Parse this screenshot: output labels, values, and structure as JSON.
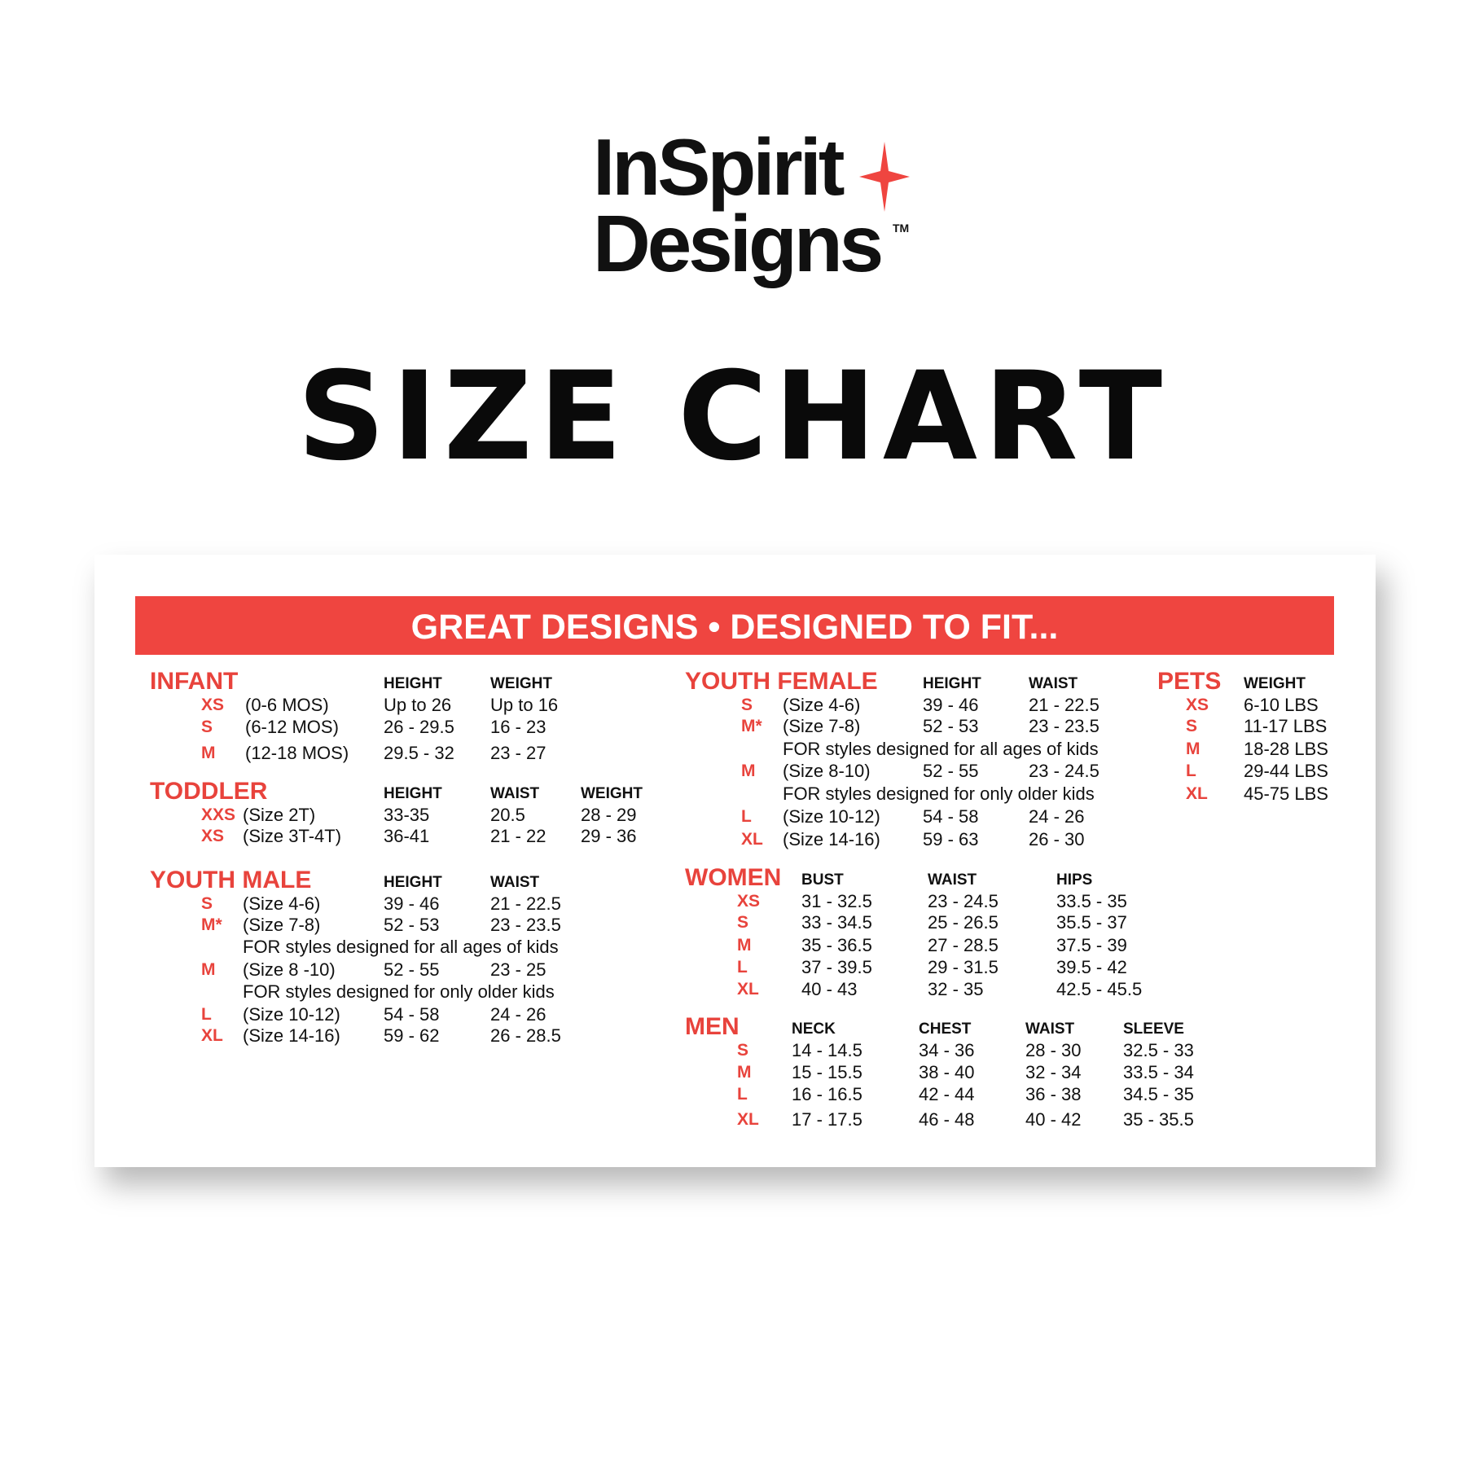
{
  "logo": {
    "line1": "InSpirit",
    "line2": "Designs",
    "tm": "TM",
    "star_color": "#ef4540"
  },
  "title": "SIZE CHART",
  "banner": "GREAT DESIGNS • DESIGNED TO FIT...",
  "colors": {
    "accent": "#ef4540",
    "text": "#111111"
  },
  "sections": [
    {
      "id": "infant",
      "title": "INFANT",
      "headers": [
        "HEIGHT",
        "WEIGHT"
      ],
      "rows": [
        {
          "size": "XS",
          "desc": "(0-6 MOS)",
          "cols": [
            "Up to 26",
            "Up to 16"
          ]
        },
        {
          "size": "S",
          "desc": "(6-12 MOS)",
          "cols": [
            "26 - 29.5",
            "16 - 23"
          ]
        },
        {
          "size": "M",
          "desc": "(12-18 MOS)",
          "cols": [
            "29.5 - 32",
            "23 - 27"
          ]
        }
      ]
    },
    {
      "id": "toddler",
      "title": "TODDLER",
      "headers": [
        "HEIGHT",
        "WAIST",
        "WEIGHT"
      ],
      "rows": [
        {
          "size": "XXS",
          "desc": "(Size 2T)",
          "cols": [
            "33-35",
            "20.5",
            "28 - 29"
          ]
        },
        {
          "size": "XS",
          "desc": "(Size 3T-4T)",
          "cols": [
            "36-41",
            "21 - 22",
            "29 - 36"
          ]
        }
      ]
    },
    {
      "id": "youth-male",
      "title": "YOUTH MALE",
      "headers": [
        "HEIGHT",
        "WAIST"
      ],
      "rows": [
        {
          "size": "S",
          "desc": "(Size 4-6)",
          "cols": [
            "39 - 46",
            "21 - 22.5"
          ]
        },
        {
          "size": "M*",
          "desc": "(Size 7-8)",
          "cols": [
            "52 - 53",
            "23 - 23.5"
          ]
        },
        {
          "note": "FOR styles designed for all ages of kids"
        },
        {
          "size": "M",
          "desc": "(Size 8 -10)",
          "cols": [
            "52 - 55",
            "23 - 25"
          ]
        },
        {
          "note": "FOR styles designed for only older kids"
        },
        {
          "size": "L",
          "desc": "(Size 10-12)",
          "cols": [
            "54 - 58",
            "24 - 26"
          ]
        },
        {
          "size": "XL",
          "desc": "(Size 14-16)",
          "cols": [
            "59 - 62",
            "26 - 28.5"
          ]
        }
      ]
    },
    {
      "id": "youth-female",
      "title": "YOUTH FEMALE",
      "headers": [
        "HEIGHT",
        "WAIST"
      ],
      "rows": [
        {
          "size": "S",
          "desc": "(Size 4-6)",
          "cols": [
            "39 - 46",
            "21 - 22.5"
          ]
        },
        {
          "size": "M*",
          "desc": "(Size 7-8)",
          "cols": [
            "52 - 53",
            "23 - 23.5"
          ]
        },
        {
          "note": "FOR styles designed for all ages of kids"
        },
        {
          "size": "M",
          "desc": "(Size 8-10)",
          "cols": [
            "52 - 55",
            "23 - 24.5"
          ]
        },
        {
          "note": "FOR styles designed for only older kids"
        },
        {
          "size": "L",
          "desc": "(Size 10-12)",
          "cols": [
            "54 - 58",
            "24 - 26"
          ]
        },
        {
          "size": "XL",
          "desc": "(Size 14-16)",
          "cols": [
            "59 - 63",
            "26 - 30"
          ]
        }
      ]
    },
    {
      "id": "pets",
      "title": "PETS",
      "headers": [
        "WEIGHT"
      ],
      "rows": [
        {
          "size": "XS",
          "cols": [
            "6-10 LBS"
          ]
        },
        {
          "size": "S",
          "cols": [
            "11-17 LBS"
          ]
        },
        {
          "size": "M",
          "cols": [
            "18-28 LBS"
          ]
        },
        {
          "size": "L",
          "cols": [
            "29-44 LBS"
          ]
        },
        {
          "size": "XL",
          "cols": [
            "45-75 LBS"
          ]
        }
      ]
    },
    {
      "id": "women",
      "title": "WOMEN",
      "headers": [
        "BUST",
        "WAIST",
        "HIPS"
      ],
      "rows": [
        {
          "size": "XS",
          "cols": [
            "31 - 32.5",
            "23 - 24.5",
            "33.5 - 35"
          ]
        },
        {
          "size": "S",
          "cols": [
            "33 - 34.5",
            "25 - 26.5",
            "35.5 - 37"
          ]
        },
        {
          "size": "M",
          "cols": [
            "35 - 36.5",
            "27 - 28.5",
            "37.5 - 39"
          ]
        },
        {
          "size": "L",
          "cols": [
            "37 - 39.5",
            "29 - 31.5",
            "39.5 - 42"
          ]
        },
        {
          "size": "XL",
          "cols": [
            "40 - 43",
            "32 - 35",
            "42.5 - 45.5"
          ]
        }
      ]
    },
    {
      "id": "men",
      "title": "MEN",
      "headers": [
        "NECK",
        "CHEST",
        "WAIST",
        "SLEEVE"
      ],
      "rows": [
        {
          "size": "S",
          "cols": [
            "14 - 14.5",
            "34 - 36",
            "28 - 30",
            "32.5 - 33"
          ]
        },
        {
          "size": "M",
          "cols": [
            "15 - 15.5",
            "38 - 40",
            "32 - 34",
            "33.5 - 34"
          ]
        },
        {
          "size": "L",
          "cols": [
            "16 - 16.5",
            "42 - 44",
            "36 - 38",
            "34.5 - 35"
          ]
        },
        {
          "size": "XL",
          "cols": [
            "17 - 17.5",
            "46 - 48",
            "40 - 42",
            "35 - 35.5"
          ]
        }
      ]
    }
  ]
}
